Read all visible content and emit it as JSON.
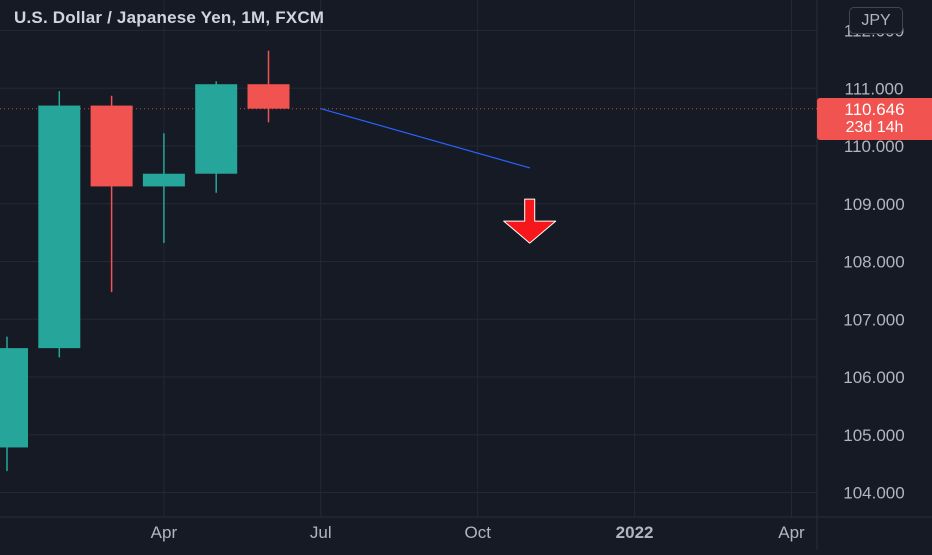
{
  "header": {
    "title": "U.S. Dollar / Japanese Yen, 1M, FXCM",
    "currency": "JPY"
  },
  "price_label": {
    "price": "110.646",
    "countdown": "23d 14h"
  },
  "colors": {
    "background": "#161a25",
    "grid": "#242833",
    "up": "#26a69a",
    "down": "#f05350",
    "trendline": "#2962ff",
    "arrow": "#f7171b",
    "axis_text": "#b2b5be",
    "last_price_line": "#f05350"
  },
  "chart_data": {
    "type": "candlestick",
    "title": "U.S. Dollar / Japanese Yen, 1M, FXCM",
    "timeframe": "1M",
    "x_ticks": [
      "Apr",
      "Jul",
      "Oct",
      "2022",
      "Apr"
    ],
    "y_ticks": [
      "104.000",
      "105.000",
      "106.000",
      "107.000",
      "108.000",
      "109.000",
      "110.000",
      "111.000",
      "112.000"
    ],
    "ylim": [
      103.6,
      112.3
    ],
    "last_price": 110.646,
    "candles": [
      {
        "month": "2021-01",
        "open": 104.78,
        "high": 106.7,
        "low": 104.37,
        "close": 106.5
      },
      {
        "month": "2021-02",
        "open": 106.5,
        "high": 110.95,
        "low": 106.34,
        "close": 110.7
      },
      {
        "month": "2021-03",
        "open": 110.7,
        "high": 110.87,
        "low": 107.47,
        "close": 109.3
      },
      {
        "month": "2021-04",
        "open": 109.3,
        "high": 110.22,
        "low": 108.32,
        "close": 109.52
      },
      {
        "month": "2021-05",
        "open": 109.52,
        "high": 111.12,
        "low": 109.19,
        "close": 111.07
      },
      {
        "month": "2021-06",
        "open": 111.07,
        "high": 111.65,
        "low": 110.41,
        "close": 110.646
      }
    ],
    "trendline": {
      "from": {
        "month": "2021-07",
        "value": 110.646
      },
      "to": {
        "month": "2021-11",
        "value": 109.62
      }
    },
    "arrow": {
      "month": "2021-10",
      "value": 108.7,
      "direction": "down"
    }
  }
}
